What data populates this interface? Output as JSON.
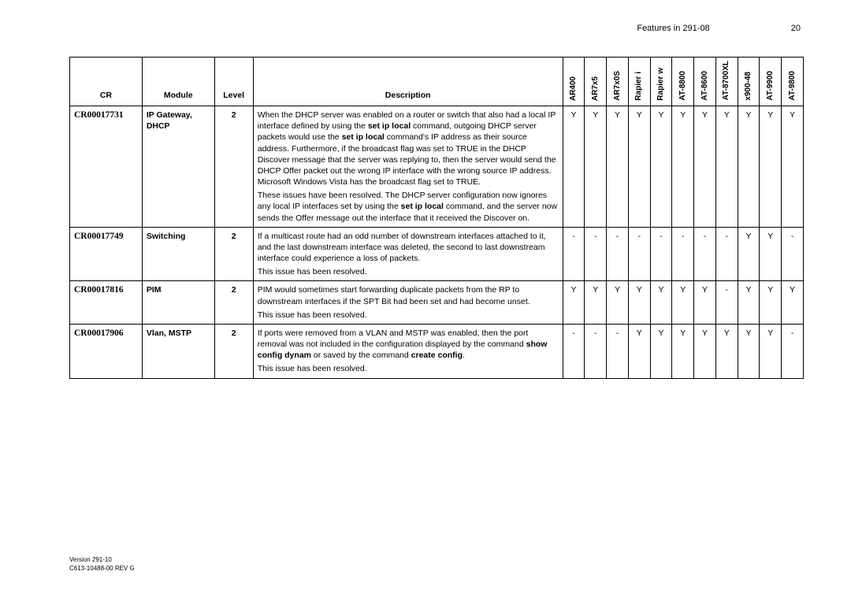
{
  "header": {
    "title": "Features in 291-08",
    "page": "20"
  },
  "columns": {
    "cr": "CR",
    "module": "Module",
    "level": "Level",
    "desc": "Description",
    "products": [
      "AR400",
      "AR7x5",
      "AR7x0S",
      "Rapier i",
      "Rapier w",
      "AT-8800",
      "AT-8600",
      "AT-8700XL",
      "x900-48",
      "AT-9900",
      "AT-9800"
    ]
  },
  "rows": [
    {
      "cr": "CR00017731",
      "module": "IP Gateway, DHCP",
      "level": "2",
      "desc_html": "<p>When the DHCP server was enabled on a router or switch that also had a local IP interface defined by using the <span class='b'>set ip local</span> command, outgoing DHCP server packets would use the <span class='b'>set ip local</span> command's IP address as their source address. Furthermore, if the broadcast flag was set to TRUE in the DHCP Discover message that the server was replying to, then the server would send the DHCP Offer packet out the wrong IP interface with the wrong source IP address. Microsoft Windows Vista has the broadcast flag set to TRUE.</p><p>These issues have been resolved. The DHCP server configuration now ignores any local IP interfaces set by using the <span class='b'>set ip local</span> command, and the server now sends the Offer message out the interface that it received the Discover on.</p>",
      "prod": [
        "Y",
        "Y",
        "Y",
        "Y",
        "Y",
        "Y",
        "Y",
        "Y",
        "Y",
        "Y",
        "Y"
      ]
    },
    {
      "cr": "CR00017749",
      "module": "Switching",
      "level": "2",
      "desc_html": "<p>If a multicast route had an odd number of downstream interfaces attached to it, and the last downstream interface was deleted, the second to last downstream interface could experience a loss of packets.</p><p>This issue has been resolved.</p>",
      "prod": [
        "-",
        "-",
        "-",
        "-",
        "-",
        "-",
        "-",
        "-",
        "Y",
        "Y",
        "-"
      ]
    },
    {
      "cr": "CR00017816",
      "module": "PIM",
      "level": "2",
      "desc_html": "<p>PIM would sometimes start forwarding duplicate packets from the RP to downstream interfaces if the SPT Bit had been set and had become unset.</p><p>This issue has been resolved.</p>",
      "prod": [
        "Y",
        "Y",
        "Y",
        "Y",
        "Y",
        "Y",
        "Y",
        "-",
        "Y",
        "Y",
        "Y"
      ]
    },
    {
      "cr": "CR00017906",
      "module": "Vlan, MSTP",
      "level": "2",
      "desc_html": "<p>If ports were removed from a VLAN and MSTP was enabled, then the port removal was not included in the configuration displayed by the command <span class='b'>show config dynam</span> or saved by the command <span class='b'>create config</span>.</p><p>This issue has been resolved.</p>",
      "prod": [
        "-",
        "-",
        "-",
        "Y",
        "Y",
        "Y",
        "Y",
        "Y",
        "Y",
        "Y",
        "-"
      ]
    }
  ],
  "footer": {
    "line1": "Version 291-10",
    "line2": "C613-10488-00 REV G"
  }
}
